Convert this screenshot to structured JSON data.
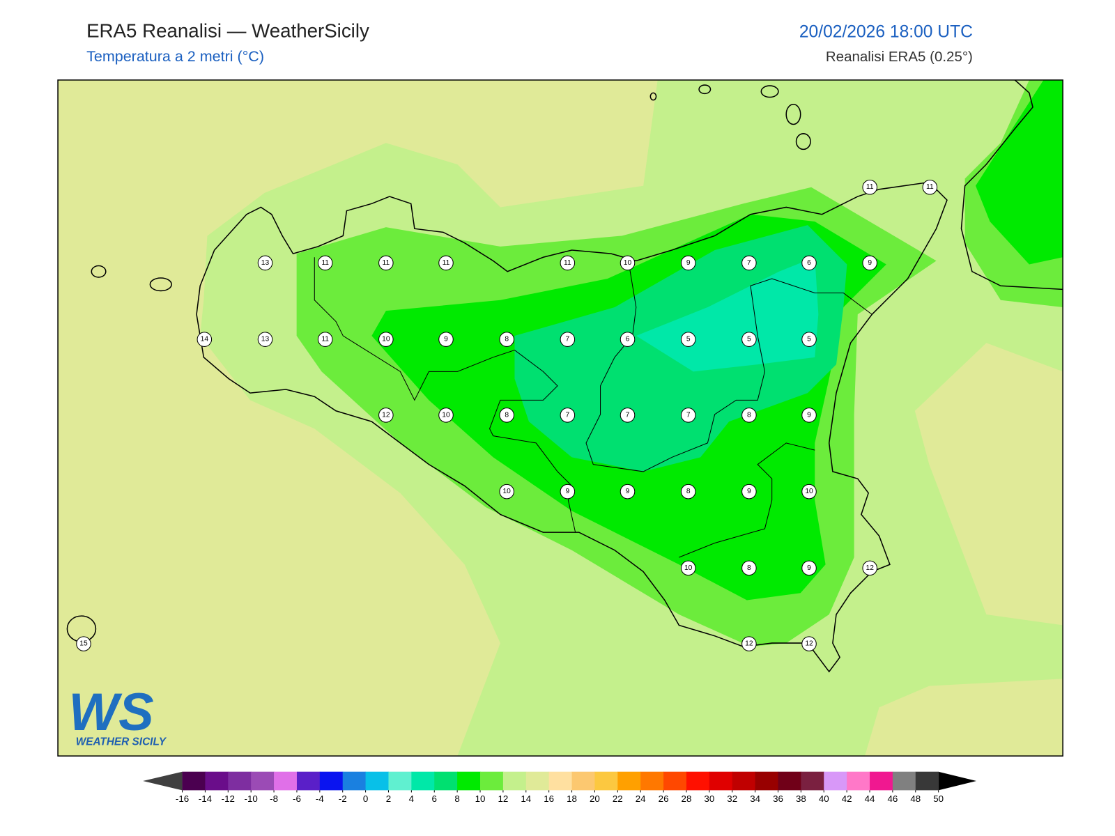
{
  "header": {
    "title": "ERA5 Reanalisi — WeatherSicily",
    "subtitle": "Temperatura a 2 metri (°C)",
    "datetime": "20/02/2026 18:00 UTC",
    "source": "Reanalisi ERA5 (0.25°)"
  },
  "map": {
    "station_values": [
      11,
      11,
      13,
      11,
      11,
      11,
      11,
      10,
      9,
      7,
      6,
      9,
      14,
      13,
      11,
      10,
      9,
      8,
      7,
      6,
      5,
      5,
      5,
      12,
      10,
      8,
      7,
      7,
      7,
      8,
      9,
      10,
      9,
      9,
      8,
      9,
      10,
      10,
      8,
      9,
      12,
      15,
      12,
      12
    ]
  },
  "colorbar": {
    "ticks": [
      -16,
      -14,
      -12,
      -10,
      -8,
      -6,
      -4,
      -2,
      0,
      2,
      4,
      6,
      8,
      10,
      12,
      14,
      16,
      18,
      20,
      22,
      24,
      26,
      28,
      30,
      32,
      34,
      36,
      38,
      40,
      42,
      44,
      46,
      48,
      50
    ],
    "colors": [
      "#4b0050",
      "#6a0d8a",
      "#7e2ea0",
      "#9b4bb5",
      "#e070e8",
      "#5a1fc8",
      "#0a14f0",
      "#1a80e0",
      "#08c0e8",
      "#60f0d0",
      "#00e8a8",
      "#00e070",
      "#00ea00",
      "#6cec3c",
      "#c4f08c",
      "#e0ea98",
      "#ffe0a0",
      "#fcc870",
      "#fcc840",
      "#ffa000",
      "#ff7800",
      "#ff4800",
      "#ff1000",
      "#e00000",
      "#c00000",
      "#980000",
      "#700018",
      "#7a2040",
      "#d898f8",
      "#ff78c8",
      "#f01890",
      "#808080",
      "#383838"
    ],
    "under_color": "#404040",
    "over_color": "#000000"
  },
  "logo": {
    "mark": "WS",
    "name": "WEATHER SICILY"
  }
}
